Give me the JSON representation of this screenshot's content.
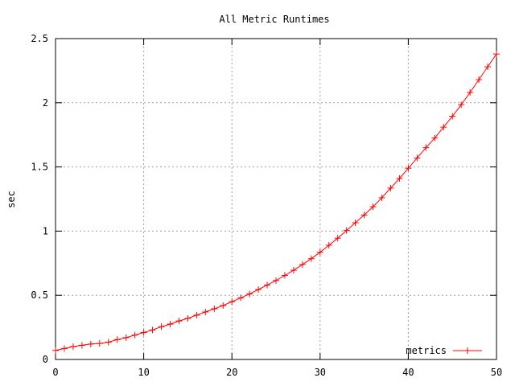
{
  "chart_data": {
    "type": "line",
    "title": "All Metric Runtimes",
    "xlabel": "",
    "ylabel": "sec",
    "xlim": [
      0,
      50
    ],
    "ylim": [
      0,
      2.5
    ],
    "x_ticks": [
      0,
      10,
      20,
      30,
      40,
      50
    ],
    "y_ticks": [
      0,
      0.5,
      1,
      1.5,
      2,
      2.5
    ],
    "x_tick_labels": [
      "0",
      "10",
      "20",
      "30",
      "40",
      "50"
    ],
    "y_tick_labels": [
      "0",
      "0.5",
      "1",
      "1.5",
      "2",
      "2.5"
    ],
    "grid": true,
    "legend_position": "bottom-right",
    "series": [
      {
        "name": "metrics",
        "color": "#ff0000",
        "marker": "plus",
        "x": [
          0,
          1,
          2,
          3,
          4,
          5,
          6,
          7,
          8,
          9,
          10,
          11,
          12,
          13,
          14,
          15,
          16,
          17,
          18,
          19,
          20,
          21,
          22,
          23,
          24,
          25,
          26,
          27,
          28,
          29,
          30,
          31,
          32,
          33,
          34,
          35,
          36,
          37,
          38,
          39,
          40,
          41,
          42,
          43,
          44,
          45,
          46,
          47,
          48,
          49,
          50
        ],
        "values": [
          0.07,
          0.085,
          0.1,
          0.11,
          0.12,
          0.125,
          0.135,
          0.155,
          0.17,
          0.19,
          0.21,
          0.23,
          0.255,
          0.275,
          0.3,
          0.32,
          0.345,
          0.37,
          0.395,
          0.42,
          0.45,
          0.48,
          0.51,
          0.545,
          0.58,
          0.615,
          0.655,
          0.695,
          0.74,
          0.785,
          0.835,
          0.89,
          0.945,
          1.005,
          1.065,
          1.125,
          1.19,
          1.26,
          1.335,
          1.41,
          1.49,
          1.57,
          1.65,
          1.725,
          1.81,
          1.895,
          1.985,
          2.08,
          2.18,
          2.28,
          2.38
        ]
      }
    ]
  }
}
